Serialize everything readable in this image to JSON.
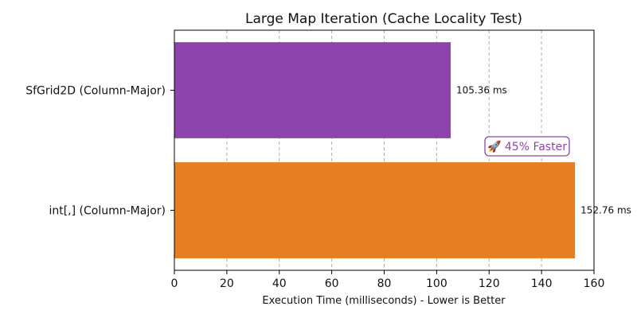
{
  "chart_data": {
    "type": "bar",
    "orientation": "horizontal",
    "title": "Large Map Iteration (Cache Locality Test)",
    "xlabel": "Execution Time (milliseconds) - Lower is Better",
    "ylabel": "",
    "xlim": [
      0,
      160
    ],
    "xticks": [
      0,
      20,
      40,
      60,
      80,
      100,
      120,
      140,
      160
    ],
    "grid": "vertical dashed",
    "categories": [
      "SfGrid2D (Column-Major)",
      "int[,] (Column-Major)"
    ],
    "values": [
      105.36,
      152.76
    ],
    "value_labels": [
      "105.36 ms",
      "152.76 ms"
    ],
    "bar_colors": [
      "#8e44ad",
      "#e67e22"
    ],
    "annotation": {
      "text": "🚀 45% Faster",
      "color": "#8e44ad"
    }
  }
}
